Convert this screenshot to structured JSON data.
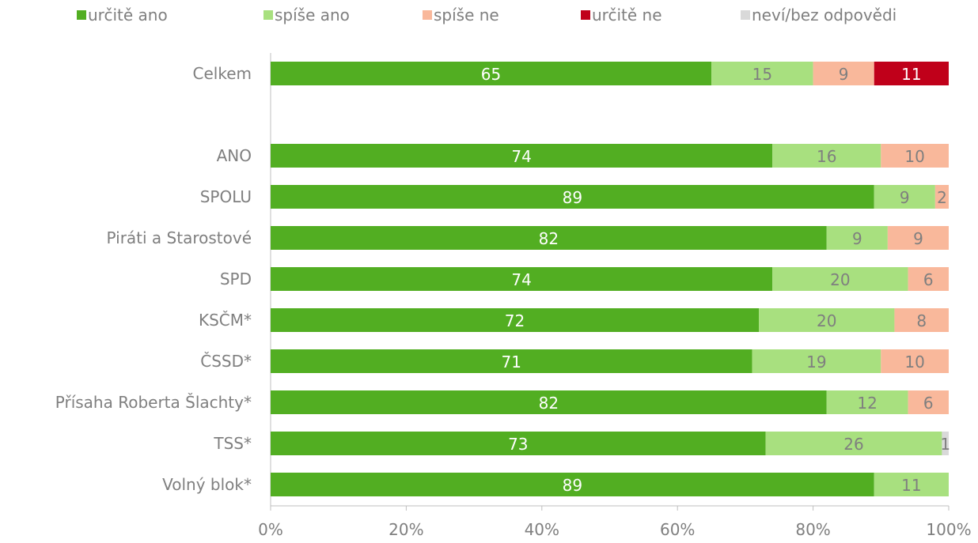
{
  "chart_data": {
    "type": "stacked-bar-horizontal",
    "categories": [
      "Celkem",
      null,
      "ANO",
      "SPOLU",
      "Piráti a Starostové",
      "SPD",
      "KSČM*",
      "ČSSD*",
      "Přísaha Roberta Šlachty*",
      "TSS*",
      "Volný blok*"
    ],
    "series": [
      {
        "name": "určitě ano",
        "color": "#52ae22",
        "values": [
          65,
          null,
          74,
          89,
          82,
          74,
          72,
          71,
          82,
          73,
          89
        ]
      },
      {
        "name": "spíše ano",
        "color": "#a8e07f",
        "values": [
          15,
          null,
          16,
          9,
          9,
          20,
          20,
          19,
          12,
          26,
          11
        ]
      },
      {
        "name": "spíše ne",
        "color": "#f9b89b",
        "values": [
          9,
          null,
          10,
          2,
          9,
          6,
          8,
          10,
          6,
          null,
          null
        ]
      },
      {
        "name": "určitě ne",
        "color": "#c0001a",
        "values": [
          11,
          null,
          null,
          null,
          null,
          null,
          null,
          null,
          null,
          null,
          null
        ]
      },
      {
        "name": "neví/bez odpovědi",
        "color": "#d9d9d9",
        "values": [
          null,
          null,
          null,
          null,
          null,
          null,
          null,
          null,
          null,
          1,
          null
        ]
      }
    ],
    "xlim": [
      0,
      100
    ],
    "xticks": [
      {
        "value": 0,
        "label": "0%"
      },
      {
        "value": 20,
        "label": "20%"
      },
      {
        "value": 40,
        "label": "40%"
      },
      {
        "value": 60,
        "label": "60%"
      },
      {
        "value": 80,
        "label": "80%"
      },
      {
        "value": 100,
        "label": "100%"
      }
    ],
    "legend": "top"
  }
}
